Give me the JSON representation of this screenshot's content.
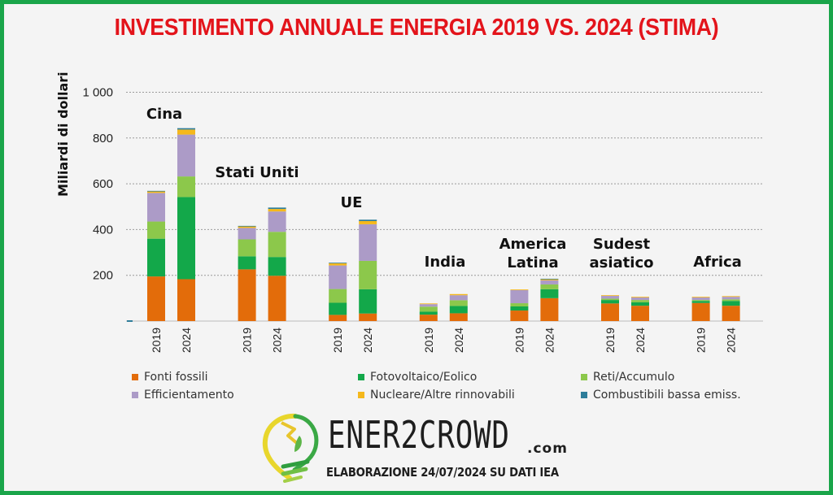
{
  "title": "INVESTIMENTO ANNUALE ENERGIA 2019 VS. 2024 (STIMA)",
  "colors": {
    "border": "#1aa54a",
    "title": "#e3141b"
  },
  "chart_data": {
    "type": "bar",
    "stacked": true,
    "title": "INVESTIMENTO ANNUALE ENERGIA 2019 VS. 2024 (STIMA)",
    "ylabel": "Miliardi di dollari",
    "xlabel": "",
    "ylim": [
      0,
      1000
    ],
    "yticks": [
      200,
      400,
      600,
      800,
      1000
    ],
    "ytick_labels": [
      "200",
      "400",
      "600",
      "800",
      "1 000"
    ],
    "grid": true,
    "legend_position": "bottom",
    "groups": [
      "Cina",
      "Stati Uniti",
      "UE",
      "India",
      "America Latina",
      "Sudest asiatico",
      "Africa"
    ],
    "group_label_lines": [
      [
        "Cina"
      ],
      [
        "Stati Uniti"
      ],
      [
        "UE"
      ],
      [
        "India"
      ],
      [
        "America",
        "Latina"
      ],
      [
        "Sudest",
        "asiatico"
      ],
      [
        "Africa"
      ]
    ],
    "years": [
      "2019",
      "2024"
    ],
    "series": [
      {
        "name": "Fonti fossili",
        "color": "#e36c0a",
        "values": [
          [
            195,
            183
          ],
          [
            226,
            198
          ],
          [
            27,
            33
          ],
          [
            28,
            34
          ],
          [
            46,
            100
          ],
          [
            77,
            67
          ],
          [
            79,
            67
          ]
        ]
      },
      {
        "name": "Fotovoltaico/Eolico",
        "color": "#13a84a",
        "values": [
          [
            165,
            359
          ],
          [
            57,
            82
          ],
          [
            53,
            106
          ],
          [
            13,
            32
          ],
          [
            18,
            39
          ],
          [
            15,
            15
          ],
          [
            9,
            21
          ]
        ]
      },
      {
        "name": "Reti/Accumulo",
        "color": "#8cc84b",
        "values": [
          [
            75,
            90
          ],
          [
            74,
            110
          ],
          [
            60,
            124
          ],
          [
            22,
            25
          ],
          [
            14,
            21
          ],
          [
            6,
            10
          ],
          [
            4,
            7
          ]
        ]
      },
      {
        "name": "Efficientamento",
        "color": "#ac9bc7",
        "values": [
          [
            125,
            183
          ],
          [
            50,
            89
          ],
          [
            103,
            160
          ],
          [
            11,
            22
          ],
          [
            57,
            18
          ],
          [
            12,
            11
          ],
          [
            11,
            11
          ]
        ]
      },
      {
        "name": "Nucleare/Altre rinnovabili",
        "color": "#f5b81c",
        "values": [
          [
            8,
            22
          ],
          [
            8,
            11
          ],
          [
            11,
            14
          ],
          [
            3,
            5
          ],
          [
            3,
            5
          ],
          [
            3,
            3
          ],
          [
            3,
            3
          ]
        ]
      },
      {
        "name": "Combustibili bassa emiss.",
        "color": "#2e7d9a",
        "values": [
          [
            1,
            6
          ],
          [
            1,
            6
          ],
          [
            1,
            6
          ],
          [
            0,
            0
          ],
          [
            0,
            2
          ],
          [
            0,
            0
          ],
          [
            0,
            0
          ]
        ]
      }
    ]
  },
  "legend": [
    {
      "label": "Fonti fossili",
      "color": "#e36c0a"
    },
    {
      "label": "Fotovoltaico/Eolico",
      "color": "#13a84a"
    },
    {
      "label": "Reti/Accumulo",
      "color": "#8cc84b"
    },
    {
      "label": "Efficientamento",
      "color": "#ac9bc7"
    },
    {
      "label": "Nucleare/Altre rinnovabili",
      "color": "#f5b81c"
    },
    {
      "label": "Combustibili bassa emiss.",
      "color": "#2e7d9a"
    }
  ],
  "logo": {
    "brand": "ENER2CROWD",
    "suffix": ".com",
    "credit": "ELABORAZIONE 24/07/2024 SU DATI IEA"
  }
}
